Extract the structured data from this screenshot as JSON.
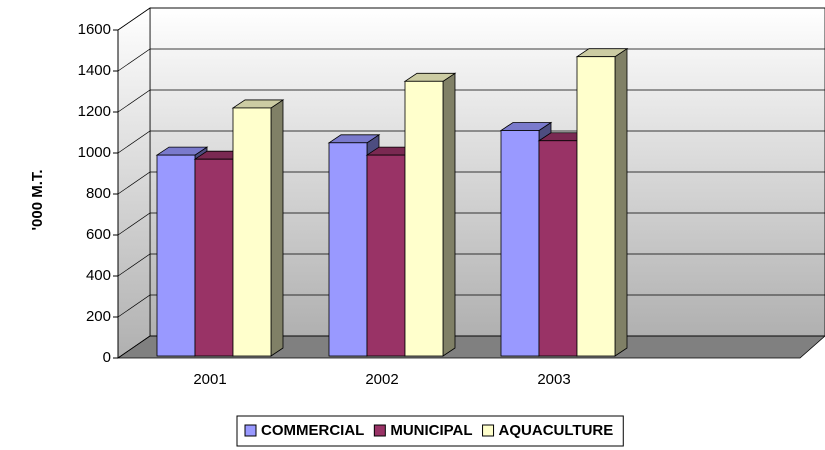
{
  "chart_data": {
    "type": "bar3d",
    "y_label": "'000 M.T.",
    "categories": [
      "2001",
      "2002",
      "2003"
    ],
    "series": [
      {
        "name": "COMMERCIAL",
        "color": "#9999ff",
        "values": [
          980,
          1040,
          1100
        ]
      },
      {
        "name": "MUNICIPAL",
        "color": "#993366",
        "values": [
          960,
          980,
          1050
        ]
      },
      {
        "name": "AQUACULTURE",
        "color": "#ffffcc",
        "values": [
          1210,
          1340,
          1460
        ]
      }
    ],
    "ylim": [
      0,
      1600
    ],
    "yticks": [
      0,
      200,
      400,
      600,
      800,
      1000,
      1200,
      1400,
      1600
    ],
    "grid": true,
    "legend": "bottom"
  }
}
